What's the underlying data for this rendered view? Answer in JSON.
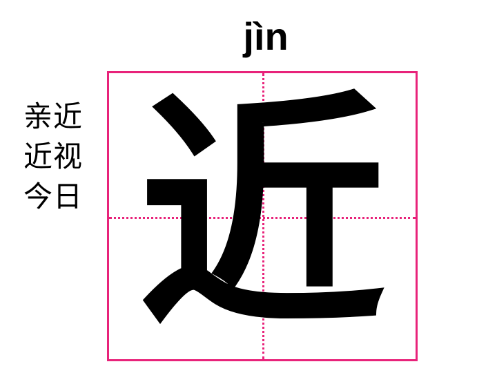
{
  "pinyin": "jìn",
  "character": "近",
  "words": [
    "亲近",
    "近视",
    "今日"
  ],
  "colors": {
    "grid_line": "#e8237a",
    "text": "#000000",
    "background": "#ffffff"
  }
}
